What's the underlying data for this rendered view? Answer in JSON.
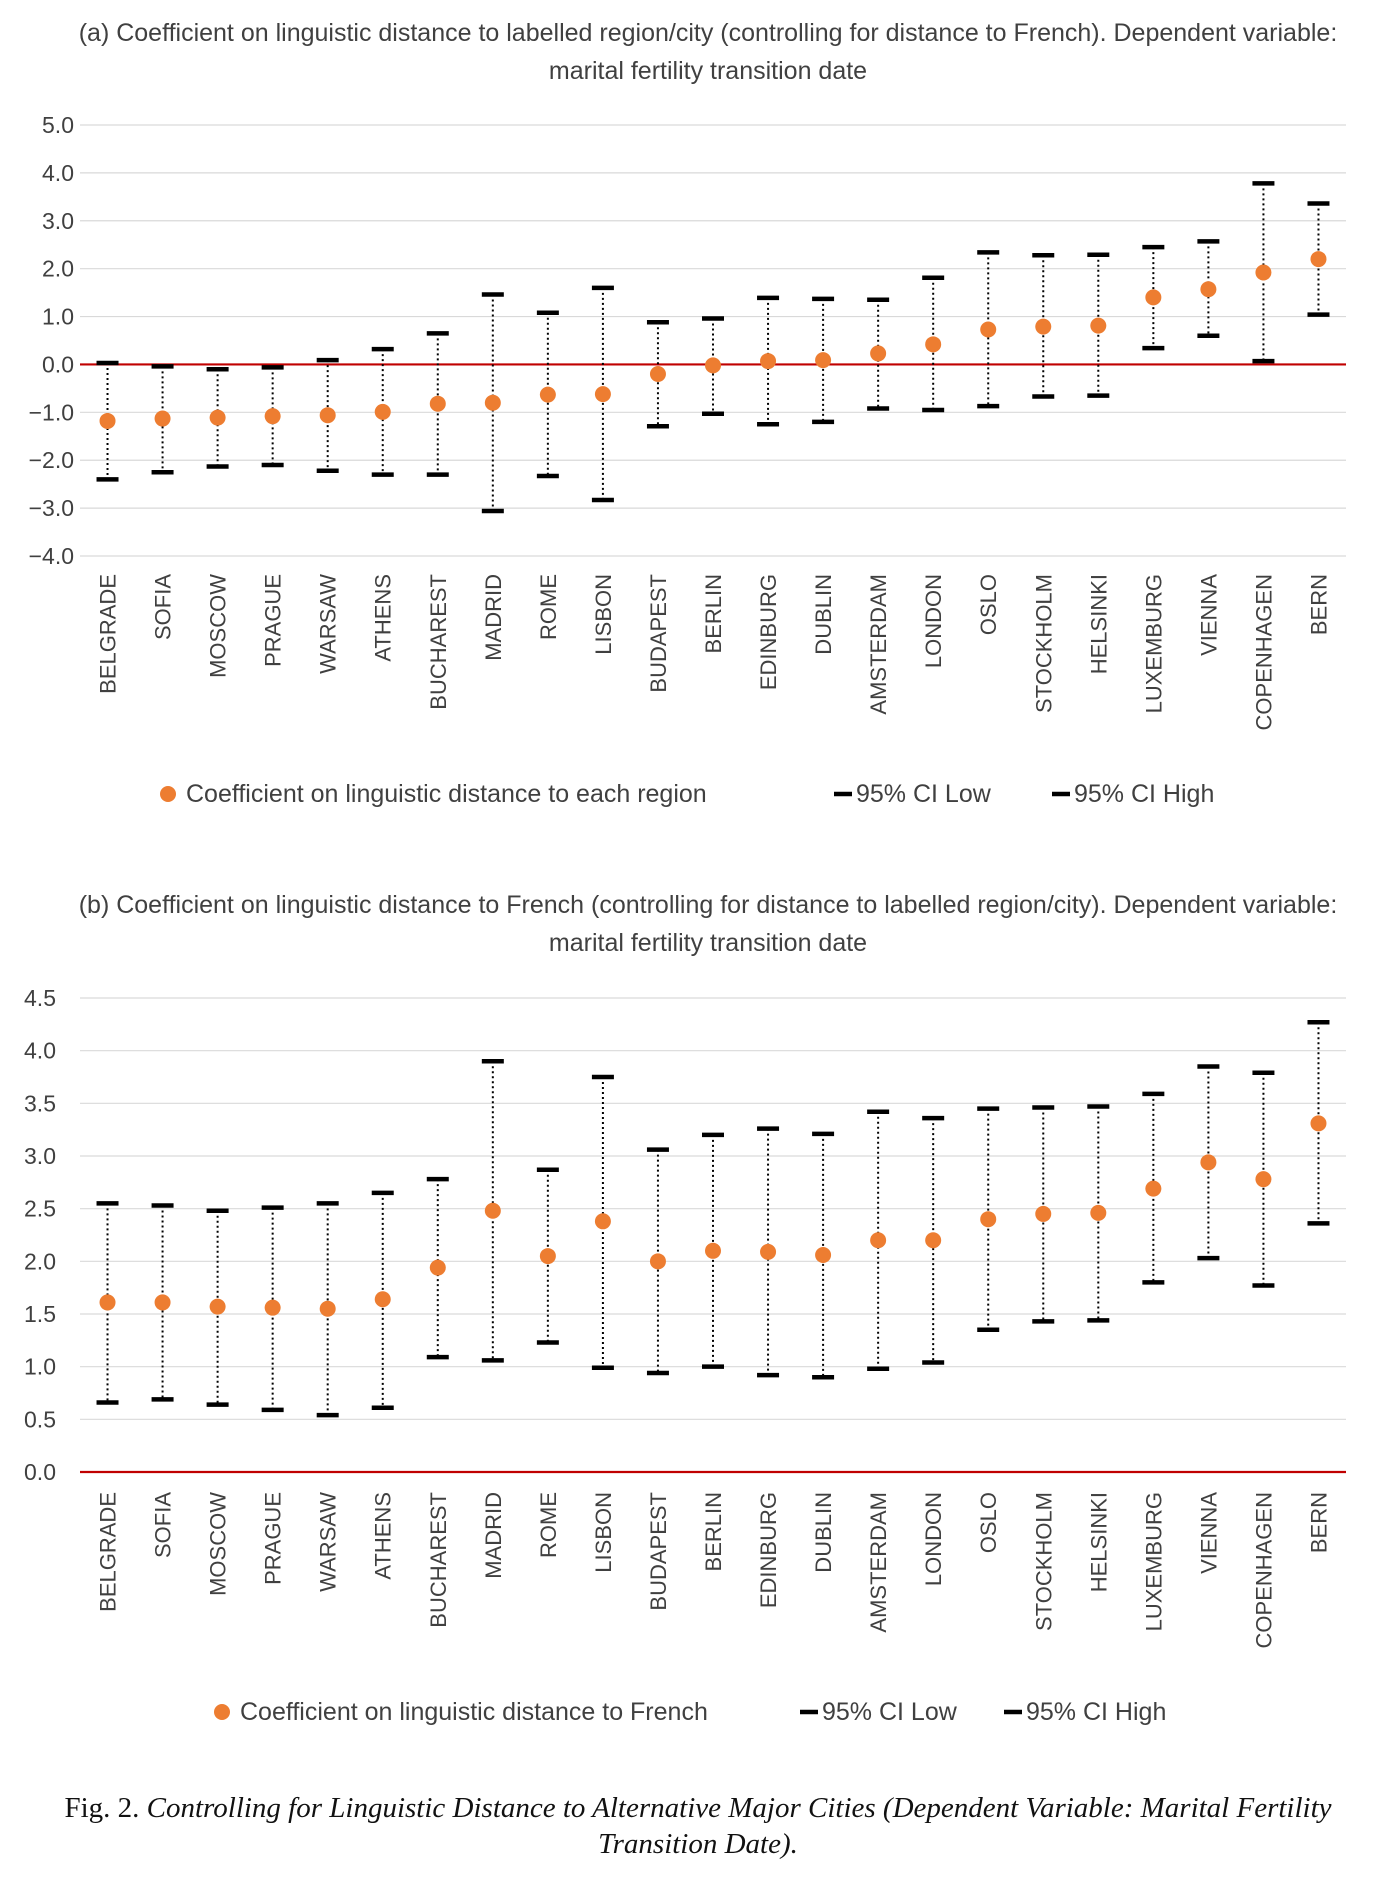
{
  "caption": {
    "label": "Fig. 2.",
    "text": "Controlling for Linguistic Distance to Alternative Major Cities (Dependent Variable: Marital Fertility Transition Date)."
  },
  "colors": {
    "point": "#ED7D31",
    "ci": "#000000",
    "zero_line": "#C00000",
    "grid": "#D9D9D9"
  },
  "chart_data": [
    {
      "type": "scatter",
      "title": "(a)  Coefficient on linguistic distance to labelled region/city (controlling for distance to French). Dependent variable:  marital fertility  transition  date",
      "categories": [
        "BELGRADE",
        "SOFIA",
        "MOSCOW",
        "PRAGUE",
        "WARSAW",
        "ATHENS",
        "BUCHAREST",
        "MADRID",
        "ROME",
        "LISBON",
        "BUDAPEST",
        "BERLIN",
        "EDINBURG",
        "DUBLIN",
        "AMSTERDAM",
        "LONDON",
        "OSLO",
        "STOCKHOLM",
        "HELSINKI",
        "LUXEMBURG",
        "VIENNA",
        "COPENHAGEN",
        "BERN"
      ],
      "series": [
        {
          "name": "Coefficient on linguistic distance to each region",
          "values": [
            -1.18,
            -1.13,
            -1.11,
            -1.08,
            -1.06,
            -0.99,
            -0.82,
            -0.8,
            -0.63,
            -0.62,
            -0.2,
            -0.02,
            0.07,
            0.09,
            0.23,
            0.42,
            0.73,
            0.79,
            0.81,
            1.4,
            1.57,
            1.92,
            2.2
          ]
        },
        {
          "name": "95% CI Low",
          "values": [
            -2.4,
            -2.25,
            -2.13,
            -2.1,
            -2.22,
            -2.3,
            -2.3,
            -3.06,
            -2.33,
            -2.83,
            -1.29,
            -1.03,
            -1.25,
            -1.2,
            -0.92,
            -0.95,
            -0.87,
            -0.67,
            -0.65,
            0.34,
            0.6,
            0.07,
            1.04
          ]
        },
        {
          "name": "95% CI High",
          "values": [
            0.03,
            -0.04,
            -0.1,
            -0.06,
            0.09,
            0.32,
            0.65,
            1.46,
            1.08,
            1.6,
            0.88,
            0.96,
            1.39,
            1.37,
            1.35,
            1.81,
            2.34,
            2.28,
            2.29,
            2.45,
            2.57,
            3.78,
            3.36
          ]
        }
      ],
      "ylim": [
        -4,
        5
      ],
      "yticks": [
        "5.0",
        "4.0",
        "3.0",
        "2.0",
        "1.0",
        "0.0",
        "-1.0",
        "-2.0",
        "-3.0",
        "-4.0"
      ],
      "grid": true,
      "legend_position": "bottom"
    },
    {
      "type": "scatter",
      "title": "(b) Coefficient on linguistic distance to French (controlling for distance to labelled region/city). Dependent variable:  marital fertility  transition  date",
      "categories": [
        "BELGRADE",
        "SOFIA",
        "MOSCOW",
        "PRAGUE",
        "WARSAW",
        "ATHENS",
        "BUCHAREST",
        "MADRID",
        "ROME",
        "LISBON",
        "BUDAPEST",
        "BERLIN",
        "EDINBURG",
        "DUBLIN",
        "AMSTERDAM",
        "LONDON",
        "OSLO",
        "STOCKHOLM",
        "HELSINKI",
        "LUXEMBURG",
        "VIENNA",
        "COPENHAGEN",
        "BERN"
      ],
      "series": [
        {
          "name": "Coefficient on linguistic distance to French",
          "values": [
            1.61,
            1.61,
            1.57,
            1.56,
            1.55,
            1.64,
            1.94,
            2.48,
            2.05,
            2.38,
            2.0,
            2.1,
            2.09,
            2.06,
            2.2,
            2.2,
            2.4,
            2.45,
            2.46,
            2.69,
            2.94,
            2.78,
            3.31
          ]
        },
        {
          "name": "95% CI Low",
          "values": [
            0.66,
            0.69,
            0.64,
            0.59,
            0.54,
            0.61,
            1.09,
            1.06,
            1.23,
            0.99,
            0.94,
            1.0,
            0.92,
            0.9,
            0.98,
            1.04,
            1.35,
            1.43,
            1.44,
            1.8,
            2.03,
            1.77,
            2.36
          ]
        },
        {
          "name": "95% CI High",
          "values": [
            2.55,
            2.53,
            2.48,
            2.51,
            2.55,
            2.65,
            2.78,
            3.9,
            2.87,
            3.75,
            3.06,
            3.2,
            3.26,
            3.21,
            3.42,
            3.36,
            3.45,
            3.46,
            3.47,
            3.59,
            3.85,
            3.79,
            4.27
          ]
        }
      ],
      "ylim": [
        0,
        4.5
      ],
      "yticks": [
        "4.5",
        "4.0",
        "3.5",
        "3.0",
        "2.5",
        "2.0",
        "1.5",
        "1.0",
        "0.5",
        "0.0"
      ],
      "grid": true,
      "legend_position": "bottom"
    }
  ]
}
